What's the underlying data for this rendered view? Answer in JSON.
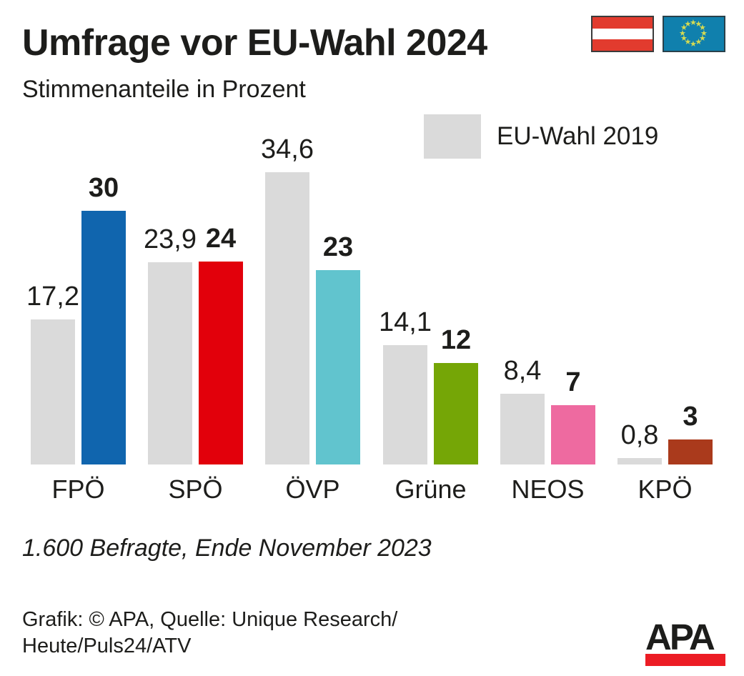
{
  "header": {
    "title": "Umfrage vor EU-Wahl 2024",
    "subtitle": "Stimmenanteile in Prozent"
  },
  "legend": {
    "label": "EU-Wahl 2019"
  },
  "chart_data": {
    "type": "bar",
    "title": "Umfrage vor EU-Wahl 2024",
    "subtitle": "Stimmenanteile in Prozent",
    "categories": [
      "FPÖ",
      "SPÖ",
      "ÖVP",
      "Grüne",
      "NEOS",
      "KPÖ"
    ],
    "series": [
      {
        "name": "EU-Wahl 2019",
        "values": [
          17.2,
          23.9,
          34.6,
          14.1,
          8.4,
          0.8
        ],
        "display_labels": [
          "17,2",
          "23,9",
          "34,6",
          "14,1",
          "8,4",
          "0,8"
        ],
        "color": "#dadada",
        "bold_labels": false
      },
      {
        "name": "Umfrage vor EU-Wahl 2024",
        "values": [
          30,
          24,
          23,
          12,
          7,
          3
        ],
        "display_labels": [
          "30",
          "24",
          "23",
          "12",
          "7",
          "3"
        ],
        "colors": [
          "#1065ae",
          "#e2000b",
          "#61c4ce",
          "#75a606",
          "#ee6aa0",
          "#aa3a1c"
        ],
        "bold_labels": true
      }
    ],
    "ylim": [
      0,
      36
    ],
    "grid": false,
    "legend": {
      "entries": [
        "EU-Wahl 2019"
      ],
      "position": "top-right"
    },
    "value_label_decimal_separator": ","
  },
  "footnote": "1.600 Befragte, Ende November 2023",
  "credits": {
    "line1": "Grafik: © APA, Quelle: Unique Research/",
    "line2": "Heute/Puls24/ATV"
  },
  "logo": {
    "text": "APA"
  },
  "icons": {
    "flags": [
      "austria-flag",
      "eu-flag"
    ]
  },
  "colors": {
    "text": "#1d1d1b",
    "bar_2019": "#dadada",
    "flag_red": "#e23b2e",
    "flag_white": "#ffffff",
    "eu_blue": "#1080ad",
    "eu_star": "#d5da52",
    "logo_red": "#ec1c24"
  }
}
